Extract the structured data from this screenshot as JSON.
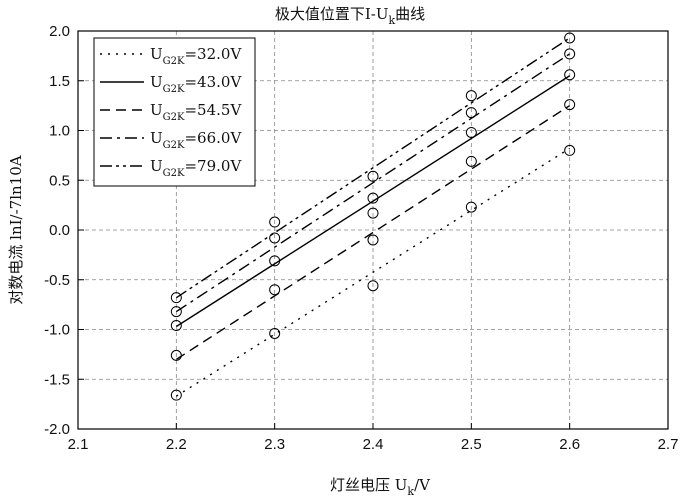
{
  "chart_data": {
    "type": "line",
    "title_prefix": "极大值位置下I-U",
    "title_sub": "k",
    "title_suffix": "曲线",
    "xlabel_prefix": "灯丝电压 U",
    "xlabel_sub": "k",
    "xlabel_suffix": "/V",
    "ylabel": "对数电流  lnI/-7ln10A",
    "xlim": [
      2.1,
      2.7
    ],
    "ylim": [
      -2.0,
      2.0
    ],
    "xticks": [
      "2.1",
      "2.2",
      "2.3",
      "2.4",
      "2.5",
      "2.6",
      "2.7"
    ],
    "yticks": [
      "-2.0",
      "-1.5",
      "-1.0",
      "-0.5",
      "0.0",
      "0.5",
      "1.0",
      "1.5",
      "2.0"
    ],
    "grid": true,
    "legend_position": "top-left",
    "x": [
      2.2,
      2.3,
      2.4,
      2.5,
      2.6
    ],
    "series": [
      {
        "name_main": "U",
        "name_sub": "G2K",
        "name_value": "=32.0V",
        "dash": "dot",
        "points": [
          -1.66,
          -1.04,
          -0.56,
          0.23,
          0.8
        ],
        "fit": [
          -1.67,
          0.82
        ]
      },
      {
        "name_main": "U",
        "name_sub": "G2K",
        "name_value": "=43.0V",
        "dash": "solid",
        "points": [
          -0.96,
          -0.31,
          0.32,
          0.98,
          1.56
        ],
        "fit": [
          -0.97,
          1.55
        ]
      },
      {
        "name_main": "U",
        "name_sub": "G2K",
        "name_value": "=54.5V",
        "dash": "dash",
        "points": [
          -1.26,
          -0.6,
          -0.1,
          0.69,
          1.26
        ],
        "fit": [
          -1.3,
          1.25
        ]
      },
      {
        "name_main": "U",
        "name_sub": "G2K",
        "name_value": "=66.0V",
        "dash": "dashdot",
        "points": [
          -0.82,
          -0.08,
          0.17,
          1.18,
          1.77
        ],
        "fit": [
          -0.82,
          1.77
        ]
      },
      {
        "name_main": "U",
        "name_sub": "G2K",
        "name_value": "=79.0V",
        "dash": "dashdotdot",
        "points": [
          -0.68,
          0.08,
          0.54,
          1.35,
          1.93
        ],
        "fit": [
          -0.68,
          1.93
        ]
      }
    ]
  }
}
